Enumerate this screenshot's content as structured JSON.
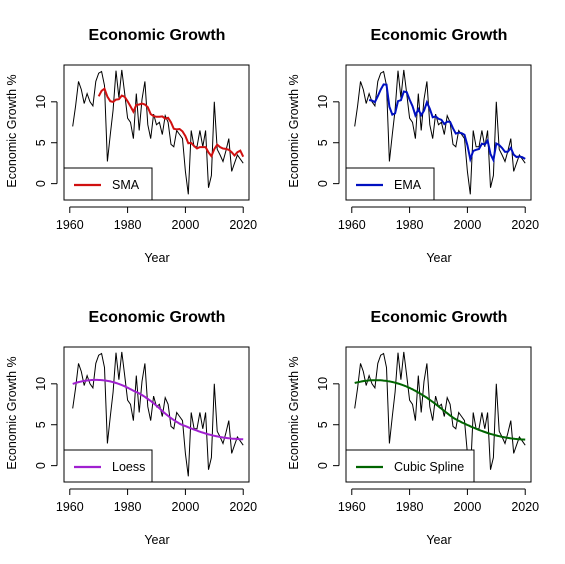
{
  "chart_data": [
    {
      "type": "line",
      "title": "Economic Growth",
      "xlabel": "Year",
      "ylabel": "Economic Growth %",
      "xlim": [
        1958,
        2022
      ],
      "ylim": [
        -2,
        14.5
      ],
      "xticks": [
        1960,
        1980,
        2000,
        2020
      ],
      "yticks": [
        0,
        5,
        10
      ],
      "legend": "bottom-left",
      "series": [
        {
          "name": "SMA",
          "color": "#d01010",
          "smooth": "sma"
        }
      ]
    },
    {
      "type": "line",
      "title": "Economic Growth",
      "xlabel": "Year",
      "ylabel": "Economic Growth %",
      "xlim": [
        1958,
        2022
      ],
      "ylim": [
        -2,
        14.5
      ],
      "xticks": [
        1960,
        1980,
        2000,
        2020
      ],
      "yticks": [
        0,
        5,
        10
      ],
      "legend": "bottom-left",
      "series": [
        {
          "name": "EMA",
          "color": "#0010c0",
          "smooth": "ema"
        }
      ]
    },
    {
      "type": "line",
      "title": "Economic Growth",
      "xlabel": "Year",
      "ylabel": "Economic Growth %",
      "xlim": [
        1958,
        2022
      ],
      "ylim": [
        -2,
        14.5
      ],
      "xticks": [
        1960,
        1980,
        2000,
        2020
      ],
      "yticks": [
        0,
        5,
        10
      ],
      "legend": "bottom-left",
      "series": [
        {
          "name": "Loess",
          "color": "#a020d0",
          "smooth": "loess"
        }
      ]
    },
    {
      "type": "line",
      "title": "Economic Growth",
      "xlabel": "Year",
      "ylabel": "Economic Growth %",
      "xlim": [
        1958,
        2022
      ],
      "ylim": [
        -2,
        14.5
      ],
      "xticks": [
        1960,
        1980,
        2000,
        2020
      ],
      "yticks": [
        0,
        5,
        10
      ],
      "legend": "bottom-left",
      "series": [
        {
          "name": "Cubic Spline",
          "color": "#006400",
          "smooth": "spline"
        }
      ]
    }
  ],
  "raw_series": {
    "x": [
      1961,
      1962,
      1963,
      1964,
      1965,
      1966,
      1967,
      1968,
      1969,
      1970,
      1971,
      1972,
      1973,
      1974,
      1975,
      1976,
      1977,
      1978,
      1979,
      1980,
      1981,
      1982,
      1983,
      1984,
      1985,
      1986,
      1987,
      1988,
      1989,
      1990,
      1991,
      1992,
      1993,
      1994,
      1995,
      1996,
      1997,
      1998,
      1999,
      2000,
      2001,
      2002,
      2003,
      2004,
      2005,
      2006,
      2007,
      2008,
      2009,
      2010,
      2011,
      2012,
      2013,
      2014,
      2015,
      2016,
      2017,
      2018,
      2019,
      2020
    ],
    "y": [
      7,
      9.5,
      12.5,
      11.5,
      9.8,
      11,
      10,
      9.5,
      12.5,
      13.5,
      13.7,
      12,
      2.7,
      6,
      9,
      13.8,
      10.5,
      13.9,
      11,
      8,
      7.5,
      5.5,
      11,
      6.5,
      10.3,
      12.5,
      7.2,
      5.5,
      8.5,
      7.2,
      7.5,
      6,
      8.3,
      7.5,
      4.8,
      4.5,
      6.5,
      6,
      5.5,
      1.5,
      -1.3,
      6.5,
      4.5,
      4.5,
      6.5,
      4.5,
      6.5,
      -0.5,
      1,
      10,
      4.2,
      3.5,
      2.7,
      4,
      5.5,
      1.5,
      2.5,
      3.5,
      3,
      2.5
    ]
  }
}
